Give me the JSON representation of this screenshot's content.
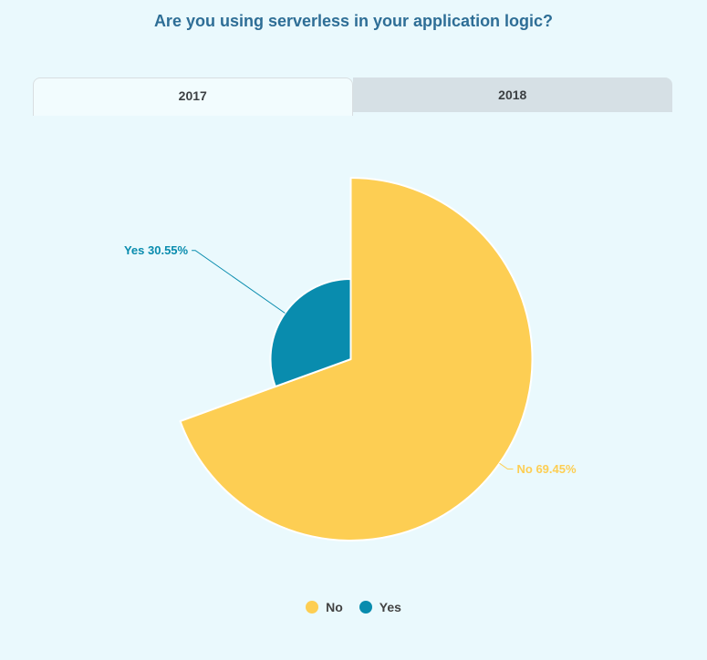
{
  "title": "Are you using serverless in your application logic?",
  "tabs": [
    {
      "label": "2017",
      "selected": true
    },
    {
      "label": "2018",
      "selected": false
    }
  ],
  "colors": {
    "background": "#EAF9FD",
    "title": "#2E6E96",
    "tab_active_bg": "#F2FCFE",
    "tab_inactive_bg": "#D6E0E5",
    "no": "#FDCE53",
    "yes": "#098CAE"
  },
  "chart_data": {
    "type": "pie",
    "title": "Are you using serverless in your application logic?",
    "legend_position": "bottom",
    "start_angle_deg": 0,
    "center": [
      384.5,
      269
    ],
    "slices": [
      {
        "name": "No",
        "value": 69.45,
        "display": "No 69.45%",
        "color": "#FDCE53",
        "radius": 199,
        "leader_len": 11,
        "leader_tail": 6
      },
      {
        "name": "Yes",
        "value": 30.55,
        "display": "Yes 30.55%",
        "color": "#098CAE",
        "radius": 88,
        "leader_len": 120,
        "leader_tail": 4
      }
    ],
    "legend": [
      {
        "label": "No",
        "color": "#FDCE53"
      },
      {
        "label": "Yes",
        "color": "#098CAE"
      }
    ]
  }
}
